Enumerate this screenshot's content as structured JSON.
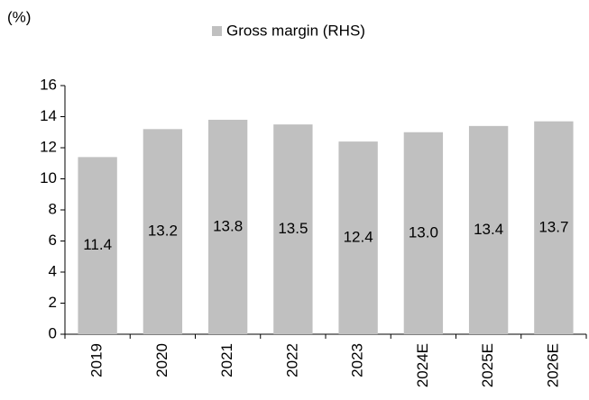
{
  "chart_data": {
    "type": "bar",
    "unit_label": "(%)",
    "legend_title": null,
    "categories": [
      "2019",
      "2020",
      "2021",
      "2022",
      "2023",
      "2024E",
      "2025E",
      "2026E"
    ],
    "series": [
      {
        "name": "Gross margin (RHS)",
        "color": "#c0c0c0",
        "values": [
          11.4,
          13.2,
          13.8,
          13.5,
          12.4,
          13.0,
          13.4,
          13.7
        ],
        "value_labels": [
          "11.4",
          "13.2",
          "13.8",
          "13.5",
          "12.4",
          "13.0",
          "13.4",
          "13.7"
        ]
      }
    ],
    "ylim": [
      0,
      16
    ],
    "yticks": [
      0,
      2,
      4,
      6,
      8,
      10,
      12,
      14,
      16
    ],
    "grid": false,
    "legend": "top"
  }
}
